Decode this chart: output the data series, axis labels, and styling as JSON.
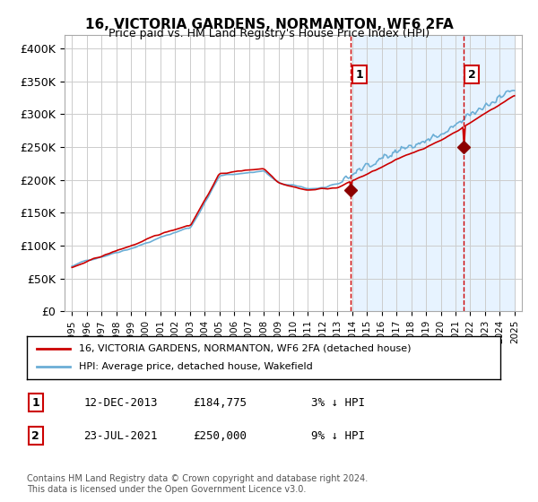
{
  "title": "16, VICTORIA GARDENS, NORMANTON, WF6 2FA",
  "subtitle": "Price paid vs. HM Land Registry's House Price Index (HPI)",
  "legend_line1": "16, VICTORIA GARDENS, NORMANTON, WF6 2FA (detached house)",
  "legend_line2": "HPI: Average price, detached house, Wakefield",
  "sale1_date": "12-DEC-2013",
  "sale1_price": 184775,
  "sale1_label": "3% ↓ HPI",
  "sale2_date": "23-JUL-2021",
  "sale2_price": 250000,
  "sale2_label": "9% ↓ HPI",
  "footnote": "Contains HM Land Registry data © Crown copyright and database right 2024.\nThis data is licensed under the Open Government Licence v3.0.",
  "hpi_color": "#6baed6",
  "price_color": "#cc0000",
  "sale_marker_color": "#8b0000",
  "background_color": "#ffffff",
  "shaded_region_color": "#ddeeff",
  "dashed_line_color": "#cc0000",
  "ylim": [
    0,
    420000
  ],
  "yticks": [
    0,
    50000,
    100000,
    150000,
    200000,
    250000,
    300000,
    350000,
    400000
  ],
  "year_start": 1995,
  "year_end": 2025,
  "sale1_year": 2013.92,
  "sale2_year": 2021.55
}
